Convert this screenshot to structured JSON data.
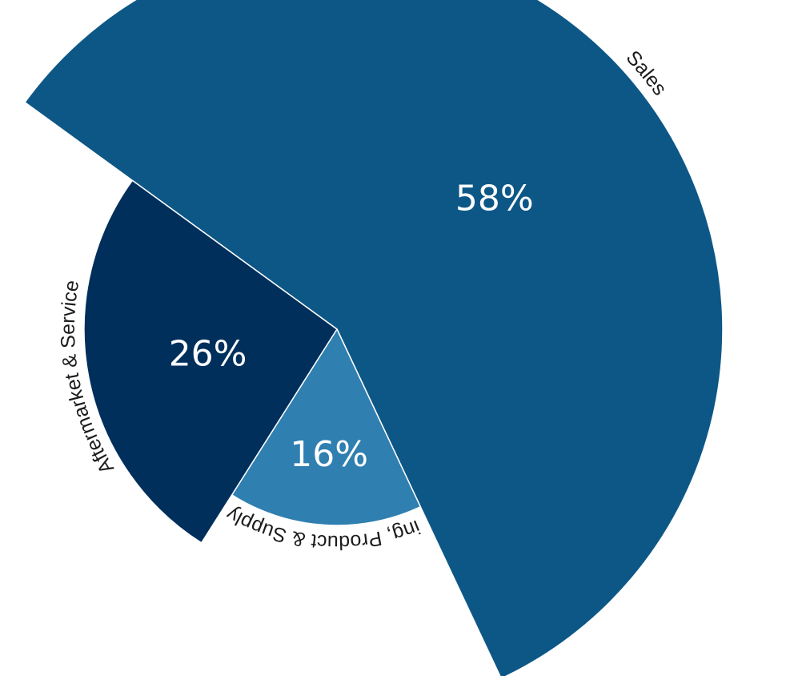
{
  "chart_data": {
    "type": "pie",
    "variant": "variable-radius pie",
    "title": "",
    "legend": "none",
    "slices": [
      {
        "label": "Sales",
        "value": 58,
        "value_label": "58%",
        "color": "#0d5787"
      },
      {
        "label": "Marketing, Product & Supply Chain",
        "value": 16,
        "value_label": "16%",
        "color": "#2f7fb0"
      },
      {
        "label": "Aftermarket & Service",
        "value": 26,
        "value_label": "26%",
        "color": "#002f5c"
      }
    ]
  }
}
